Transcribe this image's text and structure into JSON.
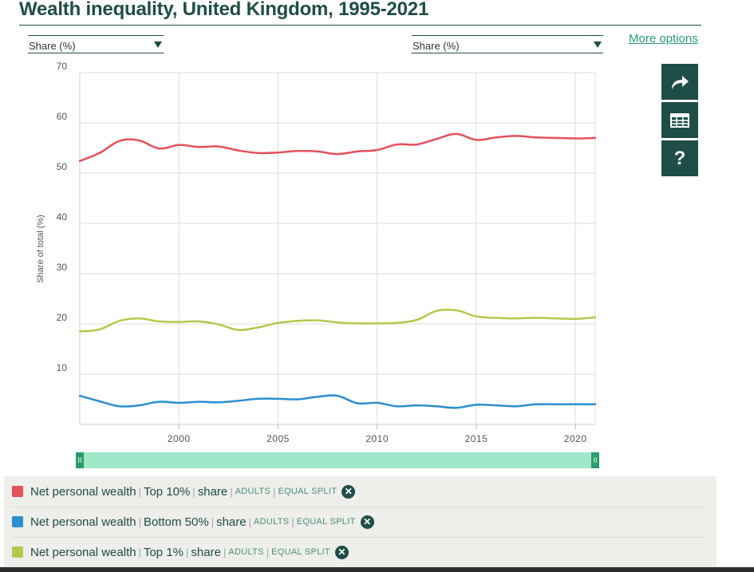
{
  "header": {
    "title": "Wealth inequality, United Kingdom, 1995-2021",
    "left_select": "Share (%)",
    "right_select": "Share (%)",
    "more_options": "More options"
  },
  "side_buttons": [
    "share-icon",
    "table-icon",
    "help-icon"
  ],
  "help_label": "?",
  "colors": {
    "top10": "#e5505a",
    "bottom50": "#2b8fcf",
    "top1": "#b3c94b",
    "brand": "#1f4d47",
    "accent": "#2a9d6a"
  },
  "slider": {
    "handle_label": "II",
    "range": [
      1995,
      2021
    ]
  },
  "chart_data": {
    "type": "line",
    "title": "Wealth inequality, United Kingdom, 1995-2021",
    "ylabel": "Share of total (%)",
    "xlabel": "",
    "ylim": [
      0,
      70
    ],
    "xlim": [
      1995,
      2021
    ],
    "yticks": [
      10,
      20,
      30,
      40,
      50,
      60,
      70
    ],
    "xticks": [
      2000,
      2005,
      2010,
      2015,
      2020
    ],
    "grid": true,
    "x": [
      1995,
      1996,
      1997,
      1998,
      1999,
      2000,
      2001,
      2002,
      2003,
      2004,
      2005,
      2006,
      2007,
      2008,
      2009,
      2010,
      2011,
      2012,
      2013,
      2014,
      2015,
      2016,
      2017,
      2018,
      2019,
      2020,
      2021
    ],
    "series": [
      {
        "name": "Net personal wealth | Top 10% | share",
        "color": "#e5505a",
        "values": [
          52.4,
          54.0,
          56.4,
          56.5,
          54.9,
          55.6,
          55.2,
          55.3,
          54.5,
          54.0,
          54.1,
          54.4,
          54.3,
          53.8,
          54.3,
          54.6,
          55.7,
          55.7,
          56.8,
          57.8,
          56.6,
          57.1,
          57.4,
          57.1,
          57.0,
          56.9,
          57.0
        ]
      },
      {
        "name": "Net personal wealth | Bottom 50% | share",
        "color": "#2b8fcf",
        "values": [
          5.7,
          4.6,
          3.6,
          3.8,
          4.5,
          4.3,
          4.5,
          4.4,
          4.7,
          5.1,
          5.1,
          5.0,
          5.5,
          5.7,
          4.2,
          4.3,
          3.6,
          3.8,
          3.6,
          3.3,
          3.9,
          3.8,
          3.6,
          4.0,
          4.0,
          4.0,
          4.0
        ]
      },
      {
        "name": "Net personal wealth | Top 1% | share",
        "color": "#b3c94b",
        "values": [
          18.5,
          18.9,
          20.6,
          21.1,
          20.5,
          20.4,
          20.5,
          19.9,
          18.8,
          19.3,
          20.2,
          20.6,
          20.7,
          20.3,
          20.1,
          20.1,
          20.2,
          20.8,
          22.6,
          22.7,
          21.5,
          21.2,
          21.1,
          21.2,
          21.1,
          21.0,
          21.3
        ]
      }
    ]
  },
  "legend": [
    {
      "metric": "Net personal wealth",
      "group": "Top 10%",
      "stat": "share",
      "pop": "ADULTS",
      "split": "EQUAL SPLIT",
      "color": "#e5505a"
    },
    {
      "metric": "Net personal wealth",
      "group": "Bottom 50%",
      "stat": "share",
      "pop": "ADULTS",
      "split": "EQUAL SPLIT",
      "color": "#2b8fcf"
    },
    {
      "metric": "Net personal wealth",
      "group": "Top 1%",
      "stat": "share",
      "pop": "ADULTS",
      "split": "EQUAL SPLIT",
      "color": "#b3c94b"
    }
  ]
}
